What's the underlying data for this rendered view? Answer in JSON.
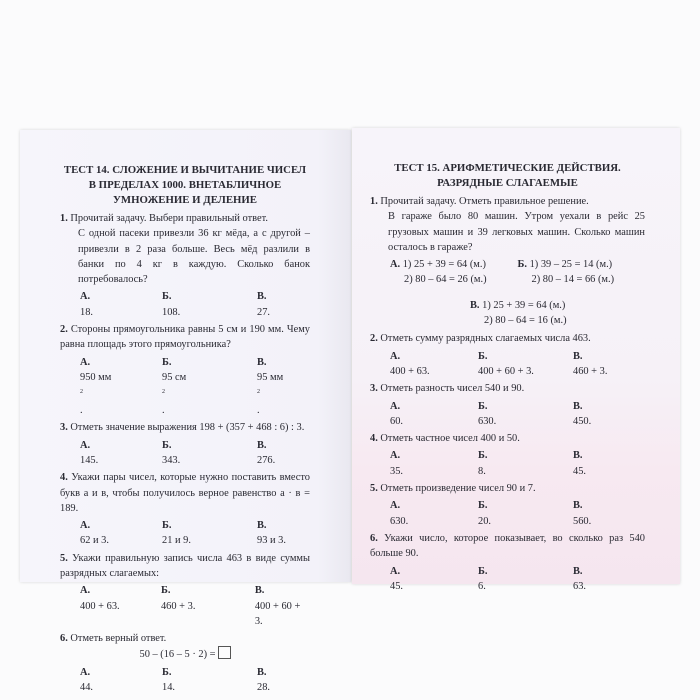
{
  "left": {
    "title": [
      "ТЕСТ  14. СЛОЖЕНИЕ И ВЫЧИТАНИЕ ЧИСЕЛ",
      "В ПРЕДЕЛАХ 1000. ВНЕТАБЛИЧНОЕ",
      "УМНОЖЕНИЕ И ДЕЛЕНИЕ"
    ],
    "questions": [
      {
        "num": "1.",
        "text": "Прочитай задачу. Выбери правильный ответ.",
        "extra": "С одной пасеки привезли 36 кг мёда, а с другой – привезли в 2 раза больше. Весь мёд разлили в банки по 4 кг в каждую. Сколько банок потребовалось?",
        "answers": [
          {
            "l": "А.",
            "v": "18."
          },
          {
            "l": "Б.",
            "v": "108."
          },
          {
            "l": "В.",
            "v": "27."
          }
        ]
      },
      {
        "num": "2.",
        "text": "Стороны прямоугольника равны 5 см и 190 мм. Чему равна площадь этого прямоугольника?",
        "answers": [
          {
            "l": "А.",
            "v": "950 мм",
            "sup": "2",
            "end": "."
          },
          {
            "l": "Б.",
            "v": "95 см",
            "sup": "2",
            "end": "."
          },
          {
            "l": "В.",
            "v": "95 мм",
            "sup": "2",
            "end": "."
          }
        ]
      },
      {
        "num": "3.",
        "text": "Отметь значение выражения 198 + (357 + 468 : 6) : 3.",
        "answers": [
          {
            "l": "А.",
            "v": "145."
          },
          {
            "l": "Б.",
            "v": "343."
          },
          {
            "l": "В.",
            "v": "276."
          }
        ]
      },
      {
        "num": "4.",
        "text": "Укажи пары чисел, которые нужно поставить вместо букв а и в, чтобы получилось верное равенство а · в = 189.",
        "answers": [
          {
            "l": "А.",
            "v": "62 и 3."
          },
          {
            "l": "Б.",
            "v": "21 и 9."
          },
          {
            "l": "В.",
            "v": "93 и 3."
          }
        ]
      },
      {
        "num": "5.",
        "text": "Укажи правильную запись числа 463 в виде суммы разрядных слагаемых:",
        "answers": [
          {
            "l": "А.",
            "v": "400 + 63."
          },
          {
            "l": "Б.",
            "v": "460 + 3."
          },
          {
            "l": "В.",
            "v": "400 + 60 + 3."
          }
        ]
      },
      {
        "num": "6.",
        "text": "Отметь верный ответ.",
        "equation": "50 – (16 – 5 · 2) =",
        "answers": [
          {
            "l": "А.",
            "v": "44."
          },
          {
            "l": "Б.",
            "v": "14."
          },
          {
            "l": "В.",
            "v": "28."
          }
        ]
      }
    ]
  },
  "right": {
    "title": [
      "ТЕСТ  15. АРИФМЕТИЧЕСКИЕ ДЕЙСТВИЯ.",
      "РАЗРЯДНЫЕ СЛАГАЕМЫЕ"
    ],
    "q1": {
      "num": "1.",
      "text": "Прочитай задачу. Отметь правильное решение.",
      "extra": "В гараже было 80 машин. Утром уехали в рейс 25 грузовых машин и 39 легковых машин. Сколько машин осталось в гараже?",
      "solutions": [
        {
          "l": "А.",
          "steps": [
            "1) 25 + 39 = 64 (м.)",
            "2) 80 – 64 = 26 (м.)"
          ]
        },
        {
          "l": "Б.",
          "steps": [
            "1) 39 – 25 = 14 (м.)",
            "2) 80 – 14 = 66 (м.)"
          ]
        },
        {
          "l": "В.",
          "steps": [
            "1) 25 + 39 = 64 (м.)",
            "2) 80 – 64 = 16 (м.)"
          ]
        }
      ]
    },
    "questions": [
      {
        "num": "2.",
        "text": "Отметь сумму разрядных слагаемых числа 463.",
        "answers": [
          {
            "l": "А.",
            "v": "400 + 63."
          },
          {
            "l": "Б.",
            "v": "400 + 60 + 3."
          },
          {
            "l": "В.",
            "v": "460 + 3."
          }
        ]
      },
      {
        "num": "3.",
        "text": "Отметь разность чисел 540 и 90.",
        "answers": [
          {
            "l": "А.",
            "v": "60."
          },
          {
            "l": "Б.",
            "v": "630."
          },
          {
            "l": "В.",
            "v": "450."
          }
        ]
      },
      {
        "num": "4.",
        "text": "Отметь частное чисел 400 и 50.",
        "answers": [
          {
            "l": "А.",
            "v": "35."
          },
          {
            "l": "Б.",
            "v": "8."
          },
          {
            "l": "В.",
            "v": "45."
          }
        ]
      },
      {
        "num": "5.",
        "text": "Отметь произведение чисел 90 и  7.",
        "answers": [
          {
            "l": "А.",
            "v": "630."
          },
          {
            "l": "Б.",
            "v": "20."
          },
          {
            "l": "В.",
            "v": "560."
          }
        ]
      },
      {
        "num": "6.",
        "text": "Укажи число, которое показывает, во сколько раз 540 больше 90.",
        "answers": [
          {
            "l": "А.",
            "v": "45."
          },
          {
            "l": "Б.",
            "v": "6."
          },
          {
            "l": "В.",
            "v": "63."
          }
        ]
      }
    ]
  }
}
